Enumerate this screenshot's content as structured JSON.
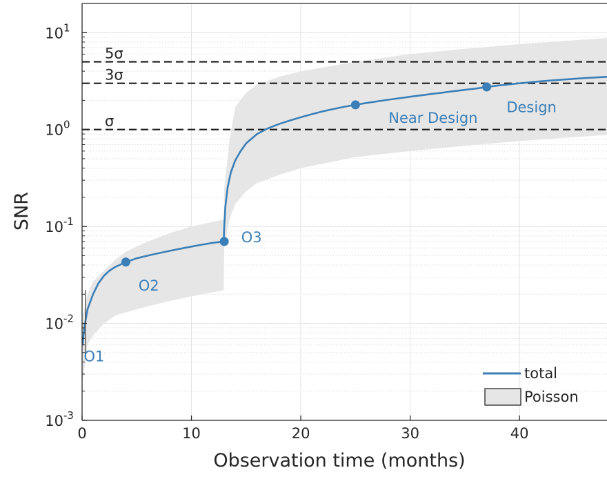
{
  "chart_data": {
    "type": "line",
    "xlabel": "Observation time (months)",
    "ylabel": "SNR",
    "xlim": [
      0,
      48
    ],
    "ylim": [
      0.001,
      20
    ],
    "y_scale": "log",
    "grid": true,
    "x_ticks": [
      "0",
      "10",
      "20",
      "30",
      "40"
    ],
    "y_ticks": [
      {
        "base": "10",
        "exp": "-3"
      },
      {
        "base": "10",
        "exp": "-2"
      },
      {
        "base": "10",
        "exp": "-1"
      },
      {
        "base": "10",
        "exp": "0"
      },
      {
        "base": "10",
        "exp": "1"
      }
    ],
    "series": [
      {
        "name": "total",
        "color": "#3B7FB8",
        "x": [
          0.05,
          0.2,
          0.5,
          1,
          1.5,
          2,
          2.5,
          3,
          4,
          5,
          6,
          7,
          8,
          9,
          10,
          11,
          12,
          12.95,
          13.0,
          13.1,
          13.3,
          13.6,
          14,
          14.5,
          15,
          16,
          17,
          18,
          19,
          20,
          21,
          22,
          23,
          24,
          25,
          26,
          28,
          30,
          32,
          34,
          36,
          37,
          38,
          40,
          42,
          44,
          46,
          48
        ],
        "y": [
          0.006,
          0.009,
          0.014,
          0.02,
          0.026,
          0.031,
          0.035,
          0.038,
          0.043,
          0.047,
          0.05,
          0.053,
          0.056,
          0.059,
          0.062,
          0.065,
          0.068,
          0.07,
          0.1,
          0.16,
          0.25,
          0.36,
          0.48,
          0.6,
          0.72,
          0.9,
          1.03,
          1.14,
          1.24,
          1.34,
          1.44,
          1.54,
          1.63,
          1.72,
          1.8,
          1.88,
          2.03,
          2.18,
          2.33,
          2.49,
          2.65,
          2.75,
          2.84,
          3.0,
          3.15,
          3.28,
          3.4,
          3.5
        ]
      }
    ],
    "poisson_band": {
      "name": "Poisson",
      "fill": "#E6E6E6",
      "x": [
        0.05,
        0.5,
        1,
        2,
        3,
        4,
        6,
        8,
        10,
        12,
        12.95,
        13.0,
        13.5,
        14,
        15,
        16,
        18,
        20,
        25,
        30,
        35,
        40,
        44,
        48
      ],
      "lower": [
        0.0025,
        0.006,
        0.0075,
        0.01,
        0.012,
        0.013,
        0.015,
        0.017,
        0.019,
        0.021,
        0.022,
        0.06,
        0.12,
        0.17,
        0.23,
        0.28,
        0.34,
        0.4,
        0.52,
        0.6,
        0.68,
        0.76,
        0.82,
        0.88
      ],
      "upper": [
        0.012,
        0.02,
        0.027,
        0.035,
        0.045,
        0.055,
        0.07,
        0.085,
        0.1,
        0.112,
        0.118,
        0.25,
        0.8,
        1.7,
        2.4,
        2.9,
        3.5,
        4.0,
        5.0,
        6.0,
        6.8,
        7.6,
        8.2,
        8.8
      ]
    },
    "sigma_lines": [
      {
        "y": 5,
        "label": "5σ"
      },
      {
        "y": 3,
        "label": "3σ"
      },
      {
        "y": 1,
        "label": "σ"
      }
    ],
    "markers": [
      {
        "x": 4,
        "y": 0.043,
        "label": "O2"
      },
      {
        "x": 13.0,
        "y": 0.07,
        "label": "O3"
      },
      {
        "x": 25,
        "y": 1.8,
        "label": "Near Design"
      },
      {
        "x": 37,
        "y": 2.75,
        "label": "Design"
      }
    ],
    "annotations": [
      {
        "text": "O1",
        "x": 1.1,
        "y": 0.0045
      },
      {
        "text": "O2",
        "x": 6.1,
        "y": 0.024
      },
      {
        "text": "O3",
        "x": 15.5,
        "y": 0.076
      },
      {
        "text": "Near Design",
        "x": 32.1,
        "y": 1.29
      },
      {
        "text": "Design",
        "x": 41.1,
        "y": 1.67
      }
    ],
    "legend": {
      "position": "bottom-right",
      "entries": [
        {
          "label": "total",
          "kind": "line"
        },
        {
          "label": "Poisson",
          "kind": "patch"
        }
      ]
    }
  }
}
